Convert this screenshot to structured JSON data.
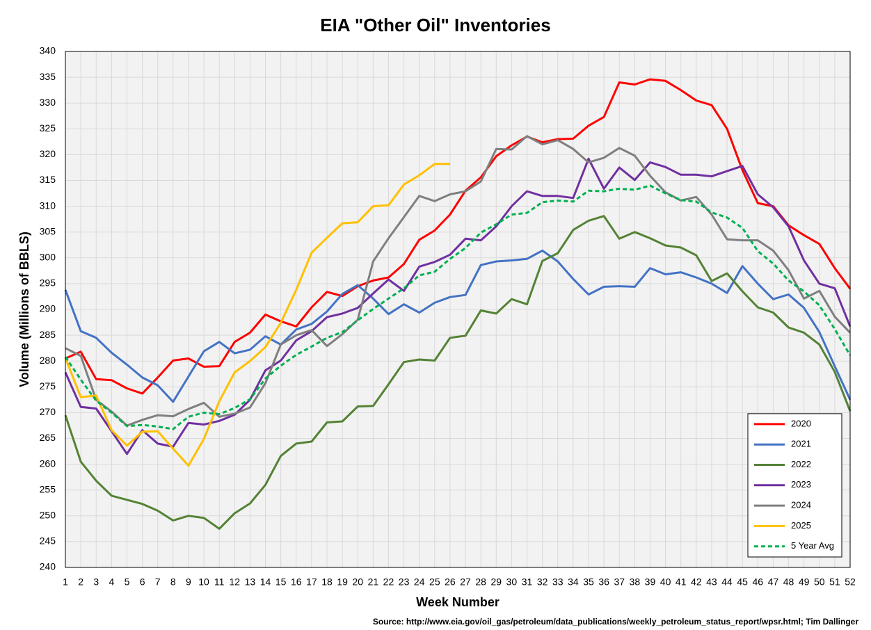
{
  "chart_data": {
    "type": "line",
    "title": "EIA \"Other Oil\" Inventories",
    "x_label": "Week Number",
    "y_label": "Volume (Millions of BBLS)",
    "source": "Source: http://www.eia.gov/oil_gas/petroleum/data_publications/weekly_petroleum_status_report/wpsr.html; Tim Dallinger",
    "x": [
      1,
      2,
      3,
      4,
      5,
      6,
      7,
      8,
      9,
      10,
      11,
      12,
      13,
      14,
      15,
      16,
      17,
      18,
      19,
      20,
      21,
      22,
      23,
      24,
      25,
      26,
      27,
      28,
      29,
      30,
      31,
      32,
      33,
      34,
      35,
      36,
      37,
      38,
      39,
      40,
      41,
      42,
      43,
      44,
      45,
      46,
      47,
      48,
      49,
      50,
      51,
      52
    ],
    "xlim": [
      1,
      52
    ],
    "ylim": [
      240,
      340
    ],
    "yticks": [
      240,
      245,
      250,
      255,
      260,
      265,
      270,
      275,
      280,
      285,
      290,
      295,
      300,
      305,
      310,
      315,
      320,
      325,
      330,
      335,
      340
    ],
    "grid": true,
    "legend": "lower right",
    "series": [
      {
        "name": "2020",
        "color": "#ff0000",
        "values": [
          280.5,
          281.8,
          276.5,
          276.3,
          274.7,
          273.7,
          276.8,
          280.1,
          280.5,
          278.9,
          279,
          283.7,
          285.5,
          289,
          287.7,
          286.7,
          290.4,
          293.4,
          292.6,
          294.5,
          295.6,
          296.2,
          298.8,
          303.5,
          305.3,
          308.4,
          313,
          315.6,
          319.7,
          321.8,
          323.5,
          322.4,
          323,
          323.1,
          325.6,
          327.3,
          334,
          333.6,
          334.6,
          334.3,
          332.5,
          330.5,
          329.6,
          325,
          317,
          310.6,
          310,
          306.3,
          304.4,
          302.7,
          298,
          294
        ]
      },
      {
        "name": "2021",
        "color": "#4472c4",
        "values": [
          293.8,
          285.8,
          284.5,
          281.6,
          279.3,
          276.8,
          275.3,
          272.1,
          277,
          281.9,
          283.7,
          281.5,
          282.2,
          284.8,
          283.2,
          286.1,
          287.2,
          289.6,
          293,
          294.7,
          292.1,
          289.1,
          291,
          289.4,
          291.3,
          292.4,
          292.8,
          298.6,
          299.3,
          299.5,
          299.8,
          301.4,
          299.3,
          295.9,
          292.9,
          294.4,
          294.5,
          294.4,
          298,
          296.8,
          297.2,
          296.2,
          295,
          293.2,
          298.4,
          295,
          292,
          292.9,
          290.3,
          285.6,
          279,
          272.5
        ]
      },
      {
        "name": "2022",
        "color": "#548235",
        "values": [
          269.5,
          260.5,
          256.8,
          253.9,
          253.1,
          252.3,
          251,
          249.1,
          250,
          249.6,
          247.5,
          250.5,
          252.4,
          256,
          261.6,
          264,
          264.4,
          268.1,
          268.3,
          271.2,
          271.3,
          275.5,
          279.8,
          280.3,
          280.1,
          284.5,
          284.9,
          289.8,
          289.2,
          292,
          291,
          299.4,
          300.9,
          305.4,
          307.2,
          308.1,
          303.7,
          305,
          303.8,
          302.4,
          302,
          300.5,
          295.5,
          297,
          293.5,
          290.4,
          289.4,
          286.5,
          285.5,
          283.2,
          277.9,
          270.3
        ]
      },
      {
        "name": "2023",
        "color": "#7030a0",
        "values": [
          277.8,
          271.1,
          270.8,
          266.4,
          262,
          266.6,
          264,
          263.4,
          268,
          267.7,
          268.4,
          269.6,
          272.5,
          278.2,
          280.1,
          284,
          285.8,
          288.5,
          289.2,
          290.3,
          293.1,
          295.8,
          293.6,
          298.3,
          299.2,
          300.6,
          303.7,
          303.4,
          306.1,
          310,
          312.9,
          312,
          312,
          311.6,
          319.2,
          313.4,
          317.5,
          315.1,
          318.5,
          317.6,
          316.1,
          316.1,
          315.8,
          316.8,
          317.8,
          312.3,
          309.8,
          306.1,
          299.5,
          295,
          294.1,
          286.7
        ]
      },
      {
        "name": "2024",
        "color": "#7f7f7f",
        "values": [
          282.5,
          281,
          272.5,
          270.2,
          267.5,
          268.6,
          269.5,
          269.3,
          270.7,
          271.9,
          269.2,
          269.8,
          271,
          275.7,
          283.2,
          285,
          286,
          282.9,
          285.2,
          288,
          299.3,
          303.8,
          307.9,
          312,
          311,
          312.3,
          312.9,
          314.8,
          321.1,
          321,
          323.6,
          322,
          322.8,
          321.1,
          318.5,
          319.4,
          321.3,
          319.8,
          315.9,
          312.7,
          311.1,
          311.8,
          308.4,
          303.6,
          303.4,
          303.4,
          301.4,
          297.6,
          292.1,
          293.6,
          288.6,
          285.5
        ]
      },
      {
        "name": "2025",
        "color": "#ffc000",
        "values": [
          280.6,
          273,
          273.3,
          266.6,
          263.6,
          266.3,
          266.4,
          263,
          259.7,
          264.9,
          272.2,
          277.8,
          280,
          282.7,
          287.4,
          293.8,
          301,
          303.9,
          306.7,
          306.9,
          310,
          310.2,
          314.2,
          316,
          318.2,
          318.2,
          null,
          null,
          null,
          null,
          null,
          null,
          null,
          null,
          null,
          null,
          null,
          null,
          null,
          null,
          null,
          null,
          null,
          null,
          null,
          null,
          null,
          null,
          null,
          null,
          null,
          null
        ]
      },
      {
        "name": "5 Year Avg",
        "color": "#00b050",
        "dashed": true,
        "values": [
          280.8,
          276.4,
          272.3,
          270,
          267.4,
          267.6,
          267.3,
          266.8,
          269.2,
          270,
          269.7,
          270.9,
          272.6,
          276.6,
          279.1,
          281.2,
          282.8,
          284.5,
          285.6,
          287.9,
          290.1,
          292.1,
          294.1,
          296.6,
          297.3,
          299.8,
          301.9,
          304.9,
          306.5,
          308.4,
          308.7,
          310.8,
          311.1,
          310.9,
          313,
          312.9,
          313.4,
          313.2,
          314,
          312.5,
          311.2,
          310.9,
          308.8,
          307.8,
          305.8,
          301.3,
          298.9,
          295.6,
          293.5,
          290.8,
          286.2,
          281.1
        ]
      }
    ]
  }
}
